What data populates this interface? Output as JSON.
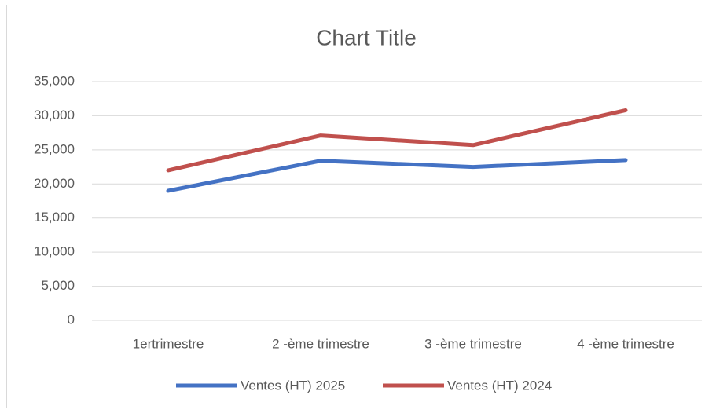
{
  "chart_data": {
    "type": "line",
    "title": "Chart Title",
    "categories": [
      "1ertrimestre",
      "2 -ème trimestre",
      "3 -ème trimestre",
      "4 -ème trimestre"
    ],
    "series": [
      {
        "name": "Ventes (HT) 2025",
        "color": "#4472c4",
        "values": [
          19000,
          23400,
          22500,
          23500
        ]
      },
      {
        "name": "Ventes (HT) 2024",
        "color": "#c0504d",
        "values": [
          22000,
          27100,
          25700,
          30800
        ]
      }
    ],
    "ylim": [
      0,
      35000
    ],
    "yticks": [
      0,
      {
        "value": 5000,
        "label": "5,000"
      },
      {
        "value": 10000,
        "label": "10,000"
      },
      {
        "value": 15000,
        "label": "15,000"
      },
      {
        "value": 20000,
        "label": "20,000"
      },
      {
        "value": 25000,
        "label": "25,000"
      },
      {
        "value": 30000,
        "label": "30,000"
      },
      {
        "value": 35000,
        "label": "35,000"
      }
    ],
    "grid": true,
    "legend": "bottom"
  }
}
